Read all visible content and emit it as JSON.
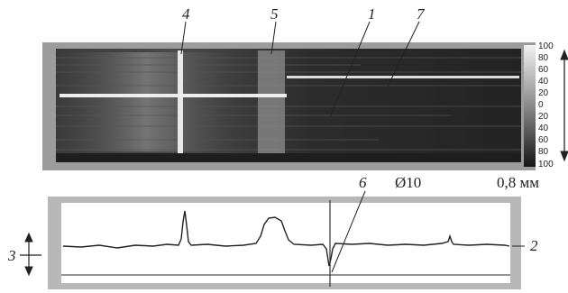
{
  "callouts": {
    "c1": "1",
    "c2": "2",
    "c3": "3",
    "c4": "4",
    "c5": "5",
    "c6": "6",
    "c7": "7"
  },
  "diameter_label": "Ø10",
  "thickness_label": "0,8 мм",
  "scale": {
    "ticks": [
      "100",
      "80",
      "60",
      "40",
      "20",
      "0",
      "20",
      "40",
      "60",
      "80",
      "100"
    ]
  }
}
